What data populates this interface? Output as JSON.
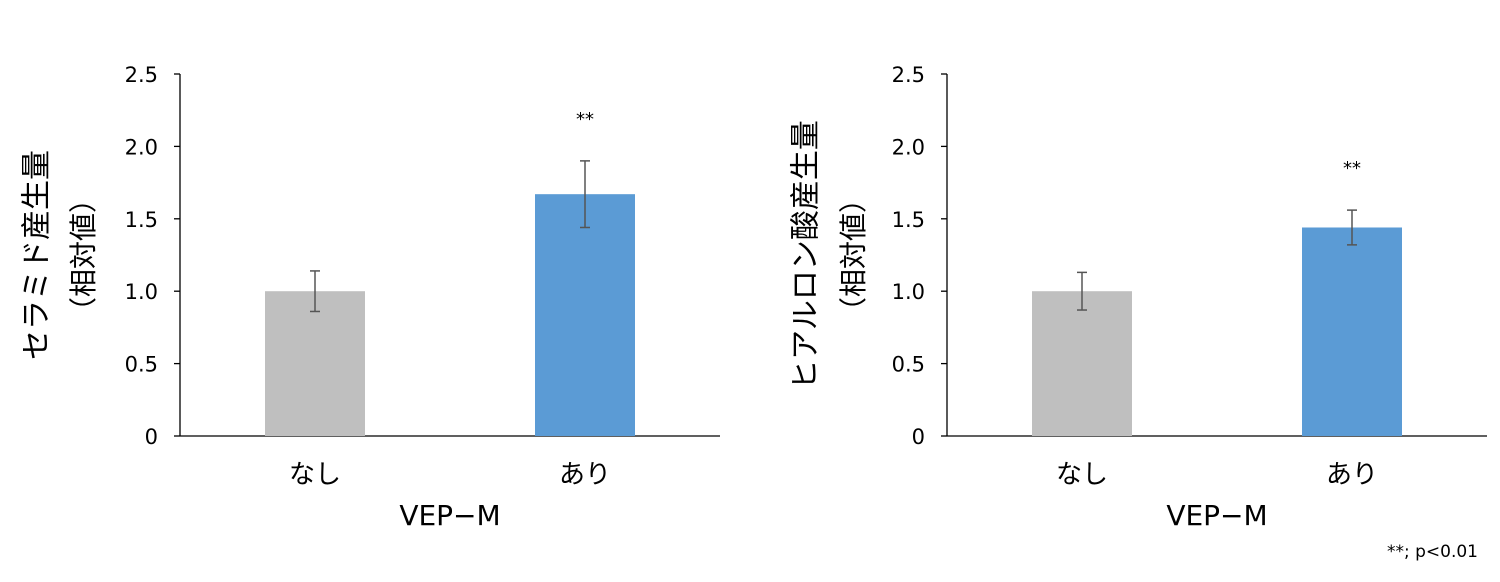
{
  "chart_data": [
    {
      "type": "bar",
      "ylabel_line1": "セラミド産生量",
      "ylabel_line2": "（相対値）",
      "xlabel": "VEP−M",
      "categories": [
        "なし",
        "あり"
      ],
      "values": [
        1.0,
        1.67
      ],
      "errors": [
        0.14,
        0.23
      ],
      "significance": [
        "",
        "**"
      ],
      "bar_colors": [
        "#bfbfbf",
        "#5b9bd5"
      ],
      "ylim": [
        0,
        2.5
      ],
      "yticks": [
        0,
        0.5,
        1.0,
        1.5,
        2.0,
        2.5
      ],
      "ytick_labels": [
        "0",
        "0.5",
        "1.0",
        "1.5",
        "2.0",
        "2.5"
      ],
      "grid": false
    },
    {
      "type": "bar",
      "ylabel_line1": "ヒアルロン酸産生量",
      "ylabel_line2": "（相対値）",
      "xlabel": "VEP−M",
      "categories": [
        "なし",
        "あり"
      ],
      "values": [
        1.0,
        1.44
      ],
      "errors": [
        0.13,
        0.12
      ],
      "significance": [
        "",
        "**"
      ],
      "bar_colors": [
        "#bfbfbf",
        "#5b9bd5"
      ],
      "ylim": [
        0,
        2.5
      ],
      "yticks": [
        0,
        0.5,
        1.0,
        1.5,
        2.0,
        2.5
      ],
      "ytick_labels": [
        "0",
        "0.5",
        "1.0",
        "1.5",
        "2.0",
        "2.5"
      ],
      "grid": false
    }
  ],
  "footnote": "**; p<0.01"
}
